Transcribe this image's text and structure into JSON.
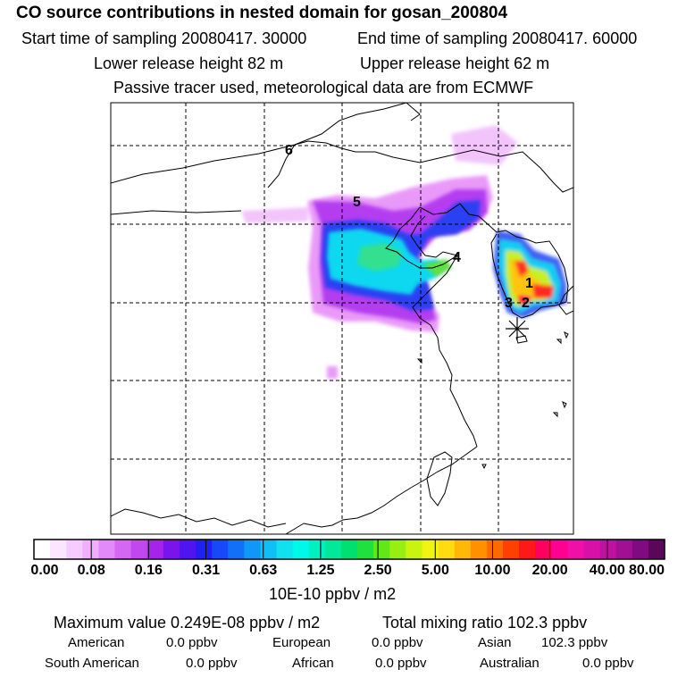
{
  "header": {
    "title": "CO  source contributions in nested domain for gosan_200804",
    "start_time": "Start time of sampling 20080417. 30000",
    "end_time": "End time of sampling 20080417. 60000",
    "lower_release": "Lower release height   82 m",
    "upper_release": "Upper release height   62 m",
    "tracer_note": "Passive tracer used, meteorological data are from ECMWF"
  },
  "chart_data": {
    "type": "heatmap",
    "title": "CO  source contributions in nested domain for gosan_200804",
    "colorbar": {
      "unit_label": "10E-10 ppbv / m2",
      "tick_labels": [
        "0.00",
        "0.08",
        "0.16",
        "0.31",
        "0.63",
        "1.25",
        "2.50",
        "5.00",
        "10.00",
        "20.00",
        "40.00",
        "80.00"
      ],
      "colors": [
        "#ffffff",
        "#fbe6ff",
        "#f6ccff",
        "#f0b0ff",
        "#e28af8",
        "#d468f2",
        "#c048ee",
        "#a524ec",
        "#7a14ec",
        "#4f14f0",
        "#2020f4",
        "#1848f8",
        "#1070f8",
        "#1098f8",
        "#10bff8",
        "#10e0f0",
        "#00f8e8",
        "#00f0c0",
        "#00e898",
        "#00e070",
        "#20e040",
        "#60e818",
        "#98ee10",
        "#c8f410",
        "#f0f410",
        "#ffdc10",
        "#ffb808",
        "#ff9000",
        "#ff6a00",
        "#ff4000",
        "#ff1818",
        "#ff0060",
        "#ff0090",
        "#f010a8",
        "#d810a8",
        "#c010a0",
        "#a01090",
        "#800a80",
        "#5a065a"
      ]
    },
    "markers": [
      {
        "id": "1",
        "label": "1"
      },
      {
        "id": "2",
        "label": "2"
      },
      {
        "id": "3",
        "label": "3"
      },
      {
        "id": "4",
        "label": "4"
      },
      {
        "id": "5",
        "label": "5"
      },
      {
        "id": "6",
        "label": "6"
      }
    ],
    "receptor": "gosan"
  },
  "summary": {
    "max_value": "Maximum value  0.249E-08 ppbv / m2",
    "total_mixing": "Total mixing ratio      102.3 ppbv",
    "american_label": "American",
    "american_value": "0.0 ppbv",
    "european_label": "European",
    "european_value": "0.0 ppbv",
    "asian_label": "Asian",
    "asian_value": "102.3 ppbv",
    "south_american_label": "South American",
    "south_american_value": "0.0 ppbv",
    "african_label": "African",
    "african_value": "0.0 ppbv",
    "australian_label": "Australian",
    "australian_value": "0.0 ppbv"
  }
}
